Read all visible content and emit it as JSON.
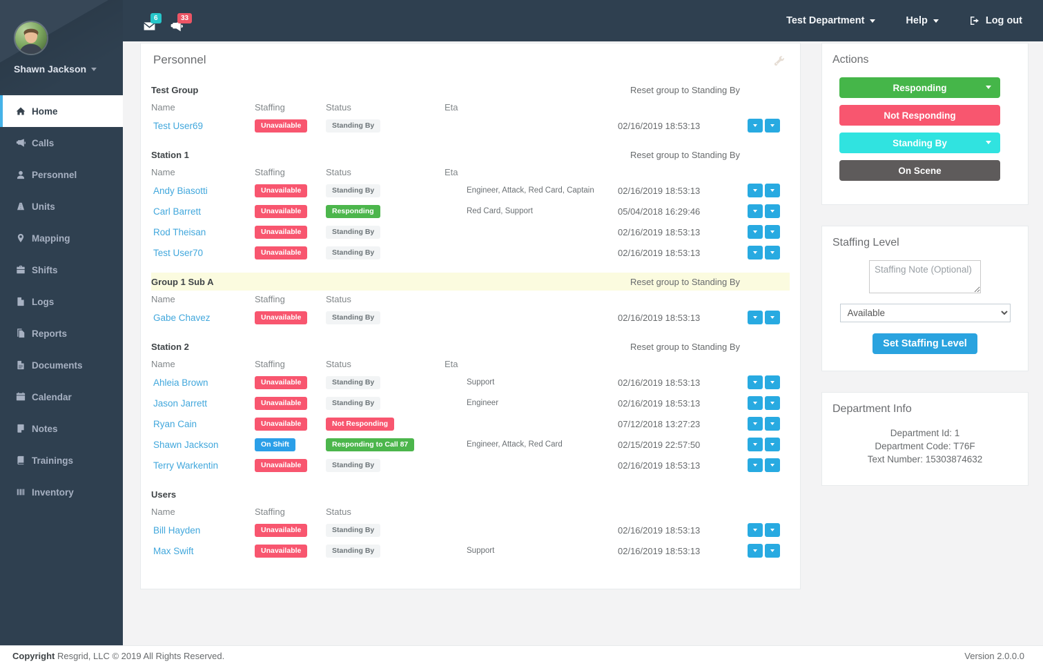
{
  "topbar": {
    "messages_badge": "6",
    "alerts_badge": "33",
    "department": "Test Department",
    "help": "Help",
    "logout": "Log out"
  },
  "sidebar": {
    "user": "Shawn Jackson",
    "items": [
      {
        "label": "Home",
        "icon": "home-icon",
        "active": true
      },
      {
        "label": "Calls",
        "icon": "bullhorn-icon",
        "active": false
      },
      {
        "label": "Personnel",
        "icon": "user-icon",
        "active": false
      },
      {
        "label": "Units",
        "icon": "road-icon",
        "active": false
      },
      {
        "label": "Mapping",
        "icon": "map-marker-icon",
        "active": false
      },
      {
        "label": "Shifts",
        "icon": "briefcase-icon",
        "active": false
      },
      {
        "label": "Logs",
        "icon": "file-icon",
        "active": false
      },
      {
        "label": "Reports",
        "icon": "copy-icon",
        "active": false
      },
      {
        "label": "Documents",
        "icon": "document-icon",
        "active": false
      },
      {
        "label": "Calendar",
        "icon": "calendar-icon",
        "active": false
      },
      {
        "label": "Notes",
        "icon": "note-icon",
        "active": false
      },
      {
        "label": "Trainings",
        "icon": "book-icon",
        "active": false
      },
      {
        "label": "Inventory",
        "icon": "inventory-icon",
        "active": false
      }
    ]
  },
  "personnel": {
    "title": "Personnel",
    "reset_link": "Reset group to Standing By",
    "groups": [
      {
        "name": "Test Group",
        "show_reset": true,
        "highlight": false,
        "columns": [
          "Name",
          "Staffing",
          "Status",
          "Eta"
        ],
        "rows": [
          {
            "name": "Test User69",
            "staffing": "Unavailable",
            "staffing_color": "red",
            "status": "Standing By",
            "status_color": "light",
            "roles": "",
            "timestamp": "02/16/2019 18:53:13"
          }
        ]
      },
      {
        "name": "Station 1",
        "show_reset": true,
        "highlight": false,
        "columns": [
          "Name",
          "Staffing",
          "Status",
          "Eta"
        ],
        "rows": [
          {
            "name": "Andy Biasotti",
            "staffing": "Unavailable",
            "staffing_color": "red",
            "status": "Standing By",
            "status_color": "light",
            "roles": "Engineer, Attack, Red Card, Captain",
            "timestamp": "02/16/2019 18:53:13"
          },
          {
            "name": "Carl Barrett",
            "staffing": "Unavailable",
            "staffing_color": "red",
            "status": "Responding",
            "status_color": "green",
            "roles": "Red Card, Support",
            "timestamp": "05/04/2018 16:29:46"
          },
          {
            "name": "Rod Theisan",
            "staffing": "Unavailable",
            "staffing_color": "red",
            "status": "Standing By",
            "status_color": "light",
            "roles": "",
            "timestamp": "02/16/2019 18:53:13"
          },
          {
            "name": "Test User70",
            "staffing": "Unavailable",
            "staffing_color": "red",
            "status": "Standing By",
            "status_color": "light",
            "roles": "",
            "timestamp": "02/16/2019 18:53:13"
          }
        ]
      },
      {
        "name": "Group 1 Sub A",
        "show_reset": true,
        "highlight": true,
        "columns": [
          "Name",
          "Staffing",
          "Status"
        ],
        "rows": [
          {
            "name": "Gabe Chavez",
            "staffing": "Unavailable",
            "staffing_color": "red",
            "status": "Standing By",
            "status_color": "light",
            "roles": "",
            "timestamp": "02/16/2019 18:53:13"
          }
        ]
      },
      {
        "name": "Station 2",
        "show_reset": true,
        "highlight": false,
        "columns": [
          "Name",
          "Staffing",
          "Status",
          "Eta"
        ],
        "rows": [
          {
            "name": "Ahleia Brown",
            "staffing": "Unavailable",
            "staffing_color": "red",
            "status": "Standing By",
            "status_color": "light",
            "roles": "Support",
            "timestamp": "02/16/2019 18:53:13"
          },
          {
            "name": "Jason Jarrett",
            "staffing": "Unavailable",
            "staffing_color": "red",
            "status": "Standing By",
            "status_color": "light",
            "roles": "Engineer",
            "timestamp": "02/16/2019 18:53:13"
          },
          {
            "name": "Ryan Cain",
            "staffing": "Unavailable",
            "staffing_color": "red",
            "status": "Not Responding",
            "status_color": "red",
            "roles": "",
            "timestamp": "07/12/2018 13:27:23"
          },
          {
            "name": "Shawn Jackson",
            "staffing": "On Shift",
            "staffing_color": "blue",
            "status": "Responding to Call 87",
            "status_color": "green",
            "roles": "Engineer, Attack, Red Card",
            "timestamp": "02/15/2019 22:57:50"
          },
          {
            "name": "Terry Warkentin",
            "staffing": "Unavailable",
            "staffing_color": "red",
            "status": "Standing By",
            "status_color": "light",
            "roles": "",
            "timestamp": "02/16/2019 18:53:13"
          }
        ]
      },
      {
        "name": "Users",
        "show_reset": false,
        "highlight": false,
        "columns": [
          "Name",
          "Staffing",
          "Status"
        ],
        "rows": [
          {
            "name": "Bill Hayden",
            "staffing": "Unavailable",
            "staffing_color": "red",
            "status": "Standing By",
            "status_color": "light",
            "roles": "",
            "timestamp": "02/16/2019 18:53:13"
          },
          {
            "name": "Max Swift",
            "staffing": "Unavailable",
            "staffing_color": "red",
            "status": "Standing By",
            "status_color": "light",
            "roles": "Support",
            "timestamp": "02/16/2019 18:53:13"
          }
        ]
      }
    ]
  },
  "actions": {
    "title": "Actions",
    "buttons": [
      {
        "label": "Responding",
        "color": "#45b649",
        "dropdown": true
      },
      {
        "label": "Not Responding",
        "color": "#f8566f",
        "dropdown": false
      },
      {
        "label": "Standing By",
        "color": "#30e3e0",
        "dropdown": true
      },
      {
        "label": "On Scene",
        "color": "#5e5b5b",
        "dropdown": false
      }
    ]
  },
  "staffing": {
    "title": "Staffing Level",
    "note_placeholder": "Staffing Note (Optional)",
    "level": "Available",
    "submit": "Set Staffing Level"
  },
  "department": {
    "title": "Department Info",
    "lines": [
      "Department Id: 1",
      "Department Code: T76F",
      "Text Number: 15303874632"
    ]
  },
  "footer": {
    "copyright_label": "Copyright",
    "copyright_text": " Resgrid, LLC © 2019 All Rights Reserved.",
    "version": "Version 2.0.0.0"
  },
  "colors": {
    "sidebar_bg": "#2f4050",
    "active_item_bar": "#45b2e8",
    "badge": {
      "red": "#f8566f",
      "green": "#4cb64c",
      "blue": "#2b9fe8",
      "light": "#f2f4f5"
    },
    "badge_light_text": "#6d7579",
    "row_button": "#28aae1",
    "messages_badge_bg": "#26c6ca",
    "alerts_badge_bg": "#ed5565",
    "link": "#41a7dc",
    "set_button": "#2aa3df"
  }
}
